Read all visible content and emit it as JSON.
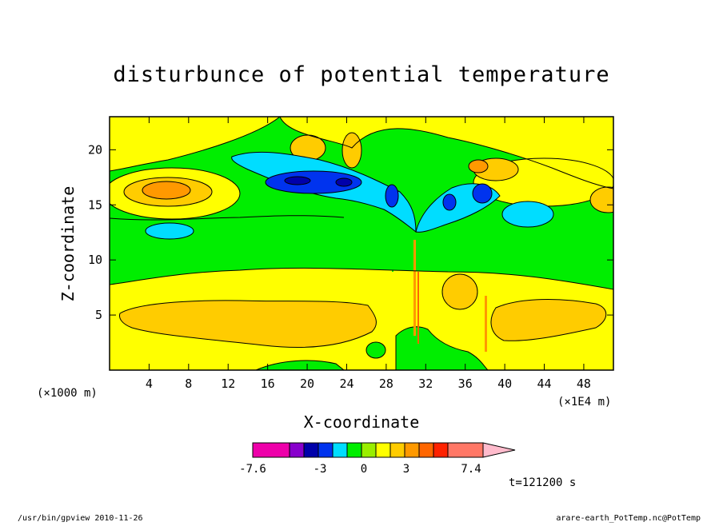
{
  "chart_data": {
    "type": "heatmap",
    "title": "disturbunce of potential temperature",
    "xlabel": "X-coordinate",
    "ylabel": "Z-coordinate",
    "x_unit_left": "(×1000 m)",
    "x_unit_right": "(×1E4 m)",
    "xlim": [
      0,
      51
    ],
    "ylim": [
      0,
      23
    ],
    "x_ticks": [
      4,
      8,
      12,
      16,
      20,
      24,
      28,
      32,
      36,
      40,
      44,
      48
    ],
    "y_ticks": [
      5,
      10,
      15,
      20
    ],
    "colorbar": {
      "colors": [
        "#ee00aa",
        "#8800cc",
        "#0000aa",
        "#0033ee",
        "#00ddff",
        "#00ee00",
        "#99ee00",
        "#ffff00",
        "#ffcc00",
        "#ff9900",
        "#ff6600",
        "#ff2200",
        "#ff7766",
        "#ffbbcc"
      ],
      "tick_labels": [
        "-7.6",
        "-3",
        "0",
        "3",
        "7.4"
      ],
      "levels_approx": [
        -7.6,
        -6.6,
        -5.6,
        -4.6,
        -3.6,
        -1.6,
        -0.5,
        0.5,
        1.5,
        2.5,
        3.5,
        4.5,
        5.5,
        7.4
      ]
    },
    "regions": [
      {
        "feature": "positive anomaly band",
        "x": [
          0,
          51
        ],
        "z": [
          1.5,
          8
        ],
        "value_approx": 1.5
      },
      {
        "feature": "positive anomaly core",
        "x": [
          0,
          46
        ],
        "z": [
          4,
          6.5
        ],
        "value_approx": 2.5
      },
      {
        "feature": "near-zero layer",
        "x": [
          0,
          51
        ],
        "z": [
          8,
          13
        ],
        "value_approx": 0
      },
      {
        "feature": "positive anomaly",
        "x": [
          1,
          13
        ],
        "z": [
          14,
          19
        ],
        "value_approx": 2.5
      },
      {
        "feature": "negative anomaly core",
        "x": [
          16,
          26
        ],
        "z": [
          15.5,
          18
        ],
        "value_approx": -4.5
      },
      {
        "feature": "negative anomaly",
        "x": [
          26,
          40
        ],
        "z": [
          12,
          17
        ],
        "value_approx": -2
      },
      {
        "feature": "positive anomaly",
        "x": [
          36,
          44
        ],
        "z": [
          16,
          19.5
        ],
        "value_approx": 2
      }
    ],
    "annotation": "t=121200 s"
  },
  "footer": {
    "left": "/usr/bin/gpview  2010-11-26",
    "right": "arare-earth_PotTemp.nc@PotTemp"
  }
}
